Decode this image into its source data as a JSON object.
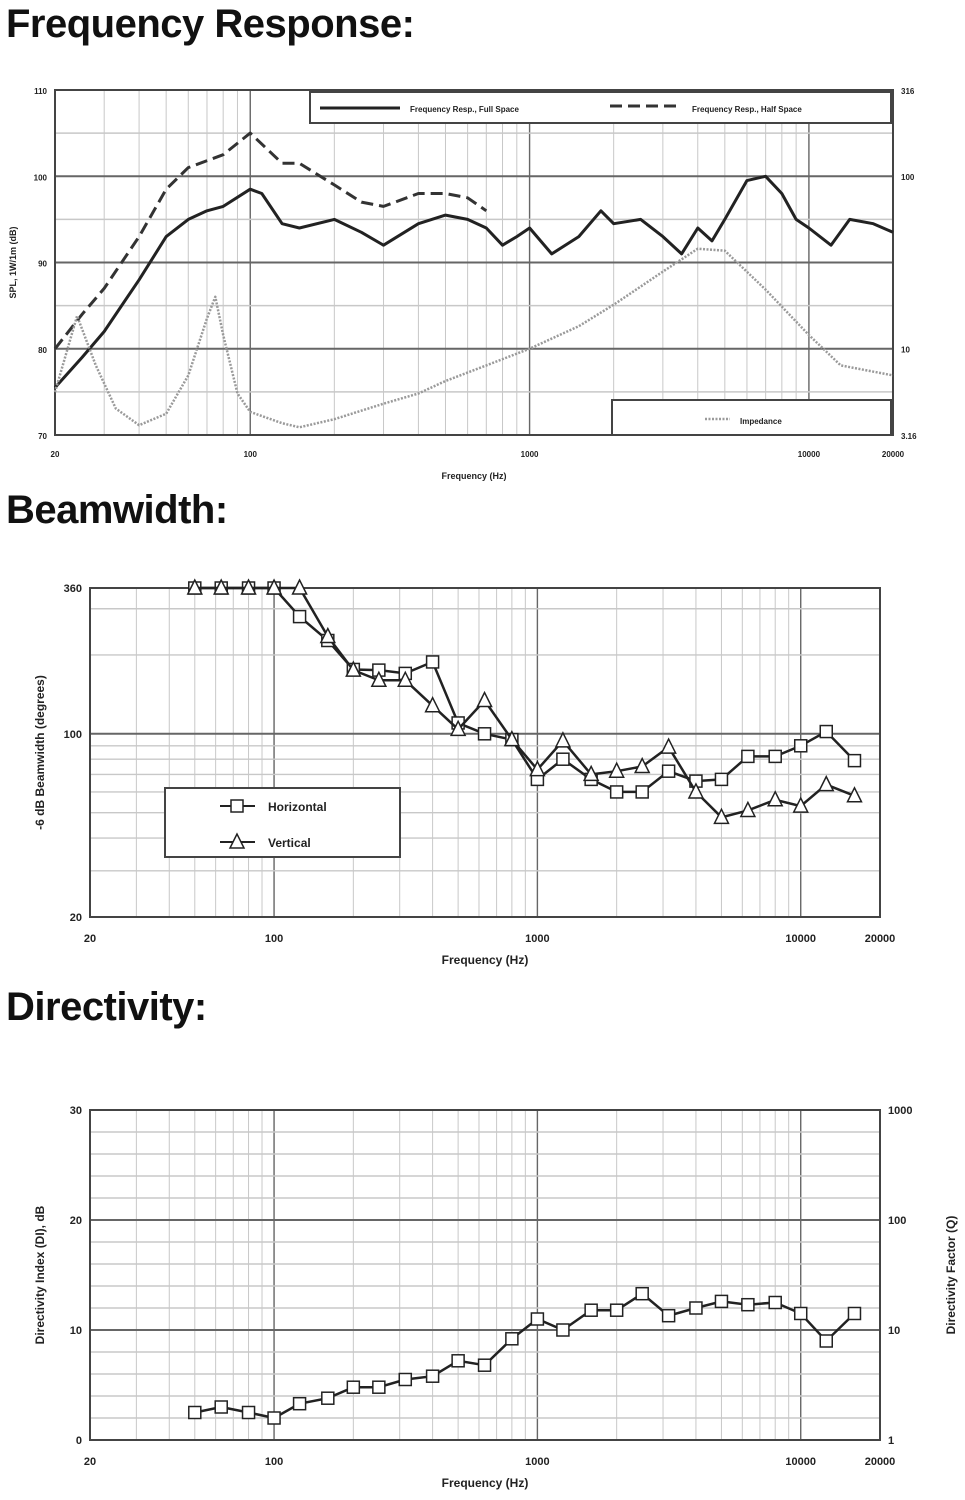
{
  "sections": {
    "frequency_response": "Frequency Response:",
    "beamwidth": "Beamwidth:",
    "directivity": "Directivity:"
  },
  "colors": {
    "full_space": "#222222",
    "half_space": "#333333",
    "impedance": "#9a9a9a",
    "grid_major": "#666666",
    "grid_minor": "#c8c8c8",
    "markers": "#222222"
  },
  "chart_data": [
    {
      "type": "line",
      "title": "Frequency Response:",
      "xlabel": "Frequency (Hz)",
      "ylabel": "SPL, 1W/1m (dB)",
      "xscale": "log",
      "xlim": [
        20,
        20000
      ],
      "ylim": [
        70,
        110
      ],
      "y2scale": "log",
      "y2lim": [
        3.16,
        316
      ],
      "xticks": [
        "20",
        "100",
        "1000",
        "10000",
        "20000"
      ],
      "xtick_values": [
        20,
        100,
        1000,
        10000,
        20000
      ],
      "yticks": [
        "70",
        "80",
        "90",
        "100",
        "110"
      ],
      "ytick_values": [
        70,
        80,
        90,
        100,
        110
      ],
      "y2ticks": [
        "3.16",
        "10",
        "100",
        "316"
      ],
      "y2tick_values": [
        3.16,
        10,
        100,
        316
      ],
      "grid": true,
      "legend": [
        {
          "label": "Frequency Resp., Full Space",
          "style": "solid",
          "placement": "top-right"
        },
        {
          "label": "Frequency Resp., Half Space",
          "style": "dashed",
          "placement": "top-right"
        },
        {
          "label": "Impedance",
          "style": "dotted",
          "placement": "bottom-right"
        }
      ],
      "series": [
        {
          "name": "Frequency Resp., Full Space",
          "axis": "left",
          "style": "solid",
          "x": [
            20,
            25,
            30,
            40,
            50,
            60,
            70,
            80,
            100,
            110,
            130,
            150,
            200,
            250,
            300,
            400,
            500,
            600,
            700,
            800,
            900,
            1000,
            1200,
            1500,
            1800,
            2000,
            2500,
            3000,
            3500,
            4000,
            4500,
            5000,
            6000,
            7000,
            8000,
            9000,
            10000,
            12000,
            14000,
            17000,
            20000
          ],
          "y": [
            75.5,
            79,
            82,
            88,
            93,
            95,
            96,
            96.5,
            98.5,
            98,
            94.5,
            94,
            95,
            93.5,
            92,
            94.5,
            95.5,
            95,
            94,
            92,
            93,
            94,
            91,
            93,
            96,
            94.5,
            95,
            93,
            91,
            94,
            92.5,
            95,
            99.5,
            100,
            98,
            95,
            94,
            92,
            95,
            94.5,
            93.5
          ]
        },
        {
          "name": "Frequency Resp., Half Space",
          "axis": "left",
          "style": "dashed",
          "x": [
            20,
            25,
            30,
            40,
            50,
            60,
            80,
            100,
            130,
            150,
            200,
            250,
            300,
            400,
            500,
            600,
            700
          ],
          "y": [
            80,
            84,
            87,
            93,
            98.5,
            101,
            102.5,
            105,
            101.5,
            101.5,
            99,
            97,
            96.5,
            98,
            98,
            97.5,
            96
          ]
        },
        {
          "name": "Impedance",
          "axis": "right",
          "style": "dotted",
          "x": [
            20,
            24,
            28,
            33,
            40,
            50,
            60,
            70,
            75,
            80,
            90,
            100,
            130,
            150,
            200,
            300,
            400,
            500,
            700,
            1000,
            1500,
            2000,
            3000,
            4000,
            5000,
            7000,
            10000,
            13000,
            20000
          ],
          "y": [
            5.6,
            15.5,
            8,
            4.5,
            3.6,
            4.2,
            7,
            15,
            20,
            12,
            5.5,
            4.3,
            3.7,
            3.5,
            3.9,
            4.8,
            5.5,
            6.5,
            8,
            10,
            13.5,
            18,
            28,
            38,
            37,
            22,
            12,
            8,
            7
          ]
        }
      ]
    },
    {
      "type": "line",
      "title": "Beamwidth:",
      "xlabel": "Frequency (Hz)",
      "ylabel": "-6 dB Beamwidth (degrees)",
      "xscale": "log",
      "xlim": [
        20,
        20000
      ],
      "yscale": "log",
      "ylim": [
        20,
        360
      ],
      "xticks": [
        "20",
        "100",
        "1000",
        "10000",
        "20000"
      ],
      "xtick_values": [
        20,
        100,
        1000,
        10000,
        20000
      ],
      "yticks": [
        "20",
        "100",
        "360"
      ],
      "ytick_values": [
        20,
        100,
        360
      ],
      "grid": true,
      "legend": [
        {
          "label": "Horizontal",
          "marker": "square",
          "placement": "center-left"
        },
        {
          "label": "Vertical",
          "marker": "triangle",
          "placement": "center-left"
        }
      ],
      "x": [
        50,
        63,
        80,
        100,
        125,
        160,
        200,
        250,
        315,
        400,
        500,
        630,
        800,
        1000,
        1250,
        1600,
        2000,
        2500,
        3150,
        4000,
        5000,
        6300,
        8000,
        10000,
        12500,
        16000
      ],
      "series": [
        {
          "name": "Horizontal",
          "marker": "square",
          "values": [
            360,
            360,
            360,
            360,
            280,
            227,
            176,
            175,
            170,
            188,
            110,
            100,
            95,
            67,
            80,
            67,
            60,
            60,
            72,
            66,
            67,
            82,
            82,
            90,
            102,
            79
          ]
        },
        {
          "name": "Vertical",
          "marker": "triangle",
          "values": [
            360,
            360,
            360,
            360,
            360,
            235,
            175,
            160,
            160,
            128,
            104,
            134,
            95,
            73,
            94,
            70,
            72,
            75,
            89,
            60,
            48,
            51,
            56,
            53,
            64,
            58
          ]
        }
      ]
    },
    {
      "type": "line",
      "title": "Directivity:",
      "xlabel": "Frequency (Hz)",
      "ylabel": "Directivity Index (DI), dB",
      "y2label": "Directivity Factor (Q)",
      "xscale": "log",
      "xlim": [
        20,
        20000
      ],
      "ylim": [
        0,
        30
      ],
      "y2scale": "log",
      "y2lim": [
        1,
        1000
      ],
      "xticks": [
        "20",
        "100",
        "1000",
        "10000",
        "20000"
      ],
      "xtick_values": [
        20,
        100,
        1000,
        10000,
        20000
      ],
      "yticks": [
        "0",
        "10",
        "20",
        "30"
      ],
      "ytick_values": [
        0,
        10,
        20,
        30
      ],
      "y2ticks": [
        "1",
        "10",
        "100",
        "1000"
      ],
      "y2tick_values": [
        1,
        10,
        100,
        1000
      ],
      "grid": true,
      "x": [
        50,
        63,
        80,
        100,
        125,
        160,
        200,
        250,
        315,
        400,
        500,
        630,
        800,
        1000,
        1250,
        1600,
        2000,
        2500,
        3150,
        4000,
        5000,
        6300,
        8000,
        10000,
        12500,
        16000
      ],
      "series": [
        {
          "marker": "square",
          "values": [
            2.5,
            3,
            2.5,
            2,
            3.3,
            3.8,
            4.8,
            4.8,
            5.5,
            5.8,
            7.2,
            6.8,
            9.2,
            11,
            10,
            11.8,
            11.8,
            13.3,
            11.3,
            12,
            12.6,
            12.3,
            12.5,
            11.5,
            9,
            11.5
          ]
        }
      ]
    }
  ]
}
